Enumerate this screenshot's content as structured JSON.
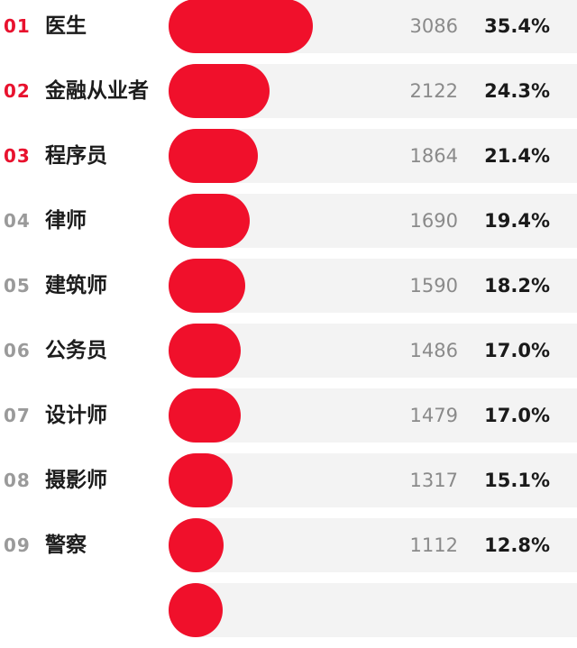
{
  "chart_data": {
    "type": "bar",
    "orientation": "horizontal",
    "categories": [
      "医生",
      "金融从业者",
      "程序员",
      "律师",
      "建筑师",
      "公务员",
      "设计师",
      "摄影师",
      "警察"
    ],
    "ranks": [
      "01",
      "02",
      "03",
      "04",
      "05",
      "06",
      "07",
      "08",
      "09"
    ],
    "counts": [
      3086,
      2122,
      1864,
      1690,
      1590,
      1486,
      1479,
      1317,
      1112
    ],
    "percents": [
      "35.4%",
      "24.3%",
      "21.4%",
      "19.4%",
      "18.2%",
      "17.0%",
      "17.0%",
      "15.1%",
      "12.8%"
    ],
    "highlight_top": 3,
    "colors": {
      "bar": "#f0102b",
      "track": "#f3f3f3",
      "rank_top": "#e8122e",
      "rank_other": "#9a9a9a"
    }
  }
}
